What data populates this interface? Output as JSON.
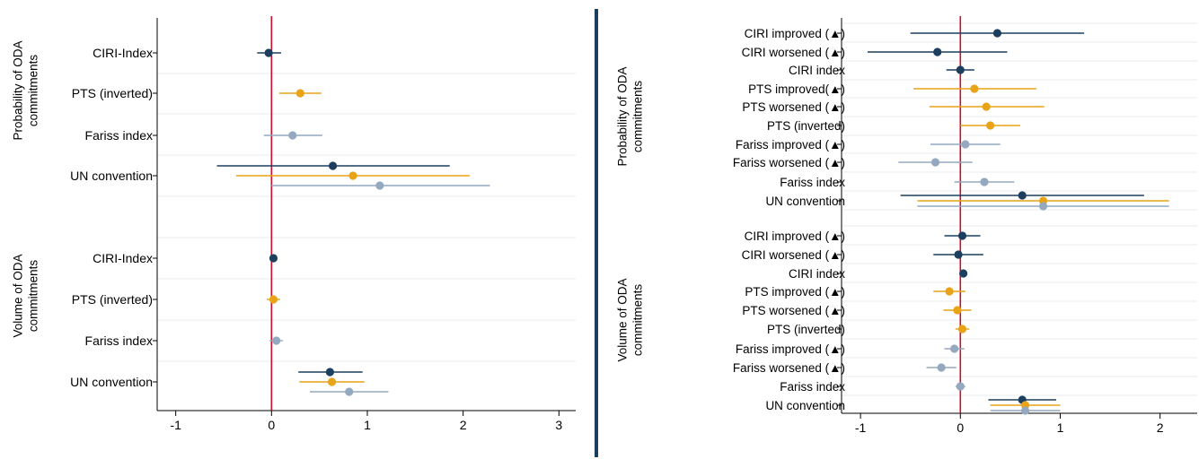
{
  "chart_data": [
    {
      "type": "scatter",
      "subtype": "coefficient-plot",
      "x": {
        "ticks": [
          -1,
          0,
          1,
          2,
          3
        ],
        "lim": [
          -1.1,
          3.1
        ],
        "reference_line": 0
      },
      "group_labels": [
        "Probability of ODA commitments",
        "Volume of ODA commitments"
      ],
      "rows": [
        {
          "label": "CIRI-Index",
          "group": 0,
          "points": [
            {
              "series": 0,
              "est": -0.03,
              "lo": -0.15,
              "hi": 0.1
            }
          ]
        },
        {
          "label": "PTS (inverted)",
          "group": 0,
          "points": [
            {
              "series": 1,
              "est": 0.3,
              "lo": 0.08,
              "hi": 0.52
            }
          ]
        },
        {
          "label": "Fariss index",
          "group": 0,
          "points": [
            {
              "series": 2,
              "est": 0.22,
              "lo": -0.08,
              "hi": 0.53
            }
          ]
        },
        {
          "label": "UN convention",
          "group": 0,
          "points": [
            {
              "series": 0,
              "est": 0.64,
              "lo": -0.57,
              "hi": 1.86
            },
            {
              "series": 1,
              "est": 0.85,
              "lo": -0.37,
              "hi": 2.07
            },
            {
              "series": 2,
              "est": 1.13,
              "lo": 0.0,
              "hi": 2.28
            }
          ]
        },
        {
          "label": "CIRI-Index",
          "group": 1,
          "points": [
            {
              "series": 0,
              "est": 0.02,
              "lo": 0.0,
              "hi": 0.04
            }
          ]
        },
        {
          "label": "PTS (inverted)",
          "group": 1,
          "points": [
            {
              "series": 1,
              "est": 0.02,
              "lo": -0.05,
              "hi": 0.09
            }
          ]
        },
        {
          "label": "Fariss index",
          "group": 1,
          "points": [
            {
              "series": 2,
              "est": 0.05,
              "lo": -0.02,
              "hi": 0.12
            }
          ]
        },
        {
          "label": "UN convention",
          "group": 1,
          "points": [
            {
              "series": 0,
              "est": 0.61,
              "lo": 0.28,
              "hi": 0.95
            },
            {
              "series": 1,
              "est": 0.63,
              "lo": 0.29,
              "hi": 0.97
            },
            {
              "series": 2,
              "est": 0.81,
              "lo": 0.4,
              "hi": 1.22
            }
          ]
        }
      ]
    },
    {
      "type": "scatter",
      "subtype": "coefficient-plot",
      "x": {
        "ticks": [
          -1,
          0,
          1,
          2
        ],
        "lim": [
          -1.1,
          2.3
        ],
        "reference_line": 0
      },
      "group_labels": [
        "Probability of ODA commitments",
        "Volume of ODA commitments"
      ],
      "rows": [
        {
          "label": "CIRI improved (▲)",
          "group": 0,
          "points": [
            {
              "series": 0,
              "est": 0.37,
              "lo": -0.5,
              "hi": 1.24
            }
          ]
        },
        {
          "label": "CIRI worsened (▲)",
          "group": 0,
          "points": [
            {
              "series": 0,
              "est": -0.23,
              "lo": -0.93,
              "hi": 0.47
            }
          ]
        },
        {
          "label": "CIRI index",
          "group": 0,
          "points": [
            {
              "series": 0,
              "est": 0.0,
              "lo": -0.14,
              "hi": 0.14
            }
          ]
        },
        {
          "label": "PTS improved(▲)",
          "group": 0,
          "points": [
            {
              "series": 1,
              "est": 0.14,
              "lo": -0.47,
              "hi": 0.76
            }
          ]
        },
        {
          "label": "PTS worsened (▲)",
          "group": 0,
          "points": [
            {
              "series": 1,
              "est": 0.26,
              "lo": -0.31,
              "hi": 0.84
            }
          ]
        },
        {
          "label": "PTS (inverted)",
          "group": 0,
          "points": [
            {
              "series": 1,
              "est": 0.3,
              "lo": 0.0,
              "hi": 0.6
            }
          ]
        },
        {
          "label": "Fariss improved (▲)",
          "group": 0,
          "points": [
            {
              "series": 2,
              "est": 0.05,
              "lo": -0.3,
              "hi": 0.4
            }
          ]
        },
        {
          "label": "Fariss worsened (▲)",
          "group": 0,
          "points": [
            {
              "series": 2,
              "est": -0.25,
              "lo": -0.62,
              "hi": 0.12
            }
          ]
        },
        {
          "label": "Fariss index",
          "group": 0,
          "points": [
            {
              "series": 2,
              "est": 0.24,
              "lo": -0.06,
              "hi": 0.54
            }
          ]
        },
        {
          "label": "UN convention",
          "group": 0,
          "points": [
            {
              "series": 0,
              "est": 0.62,
              "lo": -0.6,
              "hi": 1.84
            },
            {
              "series": 1,
              "est": 0.83,
              "lo": -0.43,
              "hi": 2.09
            },
            {
              "series": 2,
              "est": 0.83,
              "lo": -0.43,
              "hi": 2.09
            }
          ]
        },
        {
          "label": "CIRI improved (▲)",
          "group": 1,
          "points": [
            {
              "series": 0,
              "est": 0.02,
              "lo": -0.16,
              "hi": 0.2
            }
          ]
        },
        {
          "label": "CIRI worsened (▲)",
          "group": 1,
          "points": [
            {
              "series": 0,
              "est": -0.02,
              "lo": -0.27,
              "hi": 0.23
            }
          ]
        },
        {
          "label": "CIRI index",
          "group": 1,
          "points": [
            {
              "series": 0,
              "est": 0.03,
              "lo": 0.0,
              "hi": 0.06
            }
          ]
        },
        {
          "label": "PTS improved (▲)",
          "group": 1,
          "points": [
            {
              "series": 1,
              "est": -0.11,
              "lo": -0.27,
              "hi": 0.05
            }
          ]
        },
        {
          "label": "PTS worsened (▲)",
          "group": 1,
          "points": [
            {
              "series": 1,
              "est": -0.03,
              "lo": -0.17,
              "hi": 0.11
            }
          ]
        },
        {
          "label": "PTS (inverted)",
          "group": 1,
          "points": [
            {
              "series": 1,
              "est": 0.02,
              "lo": -0.05,
              "hi": 0.09
            }
          ]
        },
        {
          "label": "Fariss improved (▲)",
          "group": 1,
          "points": [
            {
              "series": 2,
              "est": -0.06,
              "lo": -0.16,
              "hi": 0.04
            }
          ]
        },
        {
          "label": "Fariss worsened (▲)",
          "group": 1,
          "points": [
            {
              "series": 2,
              "est": -0.19,
              "lo": -0.34,
              "hi": -0.04
            }
          ]
        },
        {
          "label": "Fariss index",
          "group": 1,
          "points": [
            {
              "series": 2,
              "est": 0.0,
              "lo": -0.05,
              "hi": 0.05
            }
          ]
        },
        {
          "label": "UN convention",
          "group": 1,
          "points": [
            {
              "series": 0,
              "est": 0.62,
              "lo": 0.28,
              "hi": 0.96
            },
            {
              "series": 1,
              "est": 0.65,
              "lo": 0.3,
              "hi": 1.0
            },
            {
              "series": 2,
              "est": 0.65,
              "lo": 0.3,
              "hi": 1.0
            }
          ]
        }
      ]
    }
  ],
  "colors": {
    "series": [
      "#1c3f5f",
      "#e8a317",
      "#94a8bf"
    ],
    "reference_line": "#c8102e",
    "divider": "#1c3f5f",
    "grid": "#e8ebee"
  }
}
